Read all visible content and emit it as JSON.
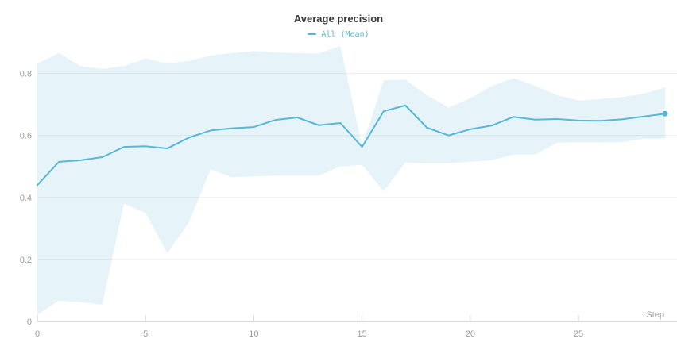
{
  "colors": {
    "line": "#58b7d6",
    "band": "rgba(88,183,214,0.15)",
    "axis": "#dcdcdc",
    "tick": "#d5d5d5",
    "grid": "#efefef",
    "tick_label": "#9b9b9b",
    "title": "#3b3b3b"
  },
  "chart_data": {
    "type": "line",
    "title": "Average precision",
    "xlabel": "Step",
    "ylabel": "",
    "x": [
      0,
      1,
      2,
      3,
      4,
      5,
      6,
      7,
      8,
      9,
      10,
      11,
      12,
      13,
      14,
      15,
      16,
      17,
      18,
      19,
      20,
      21,
      22,
      23,
      24,
      25,
      26,
      27,
      28,
      29
    ],
    "series": [
      {
        "name": "All (Mean)",
        "values": [
          0.44,
          0.515,
          0.52,
          0.53,
          0.563,
          0.565,
          0.558,
          0.593,
          0.616,
          0.623,
          0.627,
          0.65,
          0.658,
          0.633,
          0.64,
          0.563,
          0.678,
          0.697,
          0.625,
          0.6,
          0.62,
          0.632,
          0.66,
          0.651,
          0.653,
          0.648,
          0.647,
          0.652,
          0.661,
          0.67
        ]
      }
    ],
    "band": {
      "upper": [
        0.832,
        0.866,
        0.823,
        0.815,
        0.823,
        0.849,
        0.832,
        0.84,
        0.858,
        0.866,
        0.872,
        0.868,
        0.866,
        0.864,
        0.889,
        0.567,
        0.778,
        0.78,
        0.73,
        0.69,
        0.72,
        0.76,
        0.785,
        0.76,
        0.73,
        0.713,
        0.717,
        0.724,
        0.734,
        0.755
      ],
      "lower": [
        0.021,
        0.067,
        0.062,
        0.054,
        0.38,
        0.35,
        0.22,
        0.32,
        0.49,
        0.465,
        0.468,
        0.47,
        0.47,
        0.47,
        0.5,
        0.505,
        0.42,
        0.512,
        0.51,
        0.51,
        0.515,
        0.52,
        0.538,
        0.538,
        0.576,
        0.577,
        0.577,
        0.578,
        0.589,
        0.589
      ]
    },
    "xticks": [
      0,
      5,
      10,
      15,
      20,
      25
    ],
    "yticks": [
      0,
      0.2,
      0.4,
      0.6,
      0.8
    ],
    "xlim": [
      0,
      29.55
    ],
    "ylim": [
      0,
      0.896
    ],
    "grid": "horizontal",
    "legend_position": "top-center",
    "end_marker": true
  }
}
